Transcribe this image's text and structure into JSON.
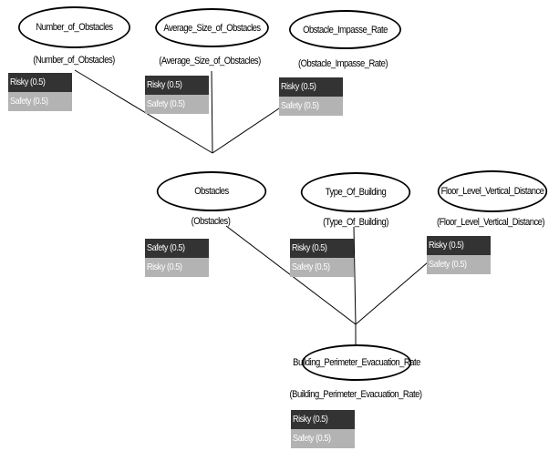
{
  "nodes": [
    {
      "id": "n1",
      "name": "Number_of_Obstacles",
      "sublabel": "(Number_of_Obstacles)",
      "states": [
        {
          "label": "Risky (0.5)",
          "tone": "dark"
        },
        {
          "label": "Safety (0.5)",
          "tone": "light"
        }
      ]
    },
    {
      "id": "n2",
      "name": "Average_Size_of_Obstacles",
      "sublabel": "(Average_Size_of_Obstacles)",
      "states": [
        {
          "label": "Risky (0.5)",
          "tone": "dark"
        },
        {
          "label": "Safety (0.5)",
          "tone": "light"
        }
      ]
    },
    {
      "id": "n3",
      "name": "Obstacle_Impasse_Rate",
      "sublabel": "(Obstacle_Impasse_Rate)",
      "states": [
        {
          "label": "Risky (0.5)",
          "tone": "dark"
        },
        {
          "label": "Safety (0.5)",
          "tone": "light"
        }
      ]
    },
    {
      "id": "n4",
      "name": "Obstacles",
      "sublabel": "(Obstacles)",
      "states": [
        {
          "label": "Safety (0.5)",
          "tone": "dark"
        },
        {
          "label": "Risky (0.5)",
          "tone": "light"
        }
      ]
    },
    {
      "id": "n5",
      "name": "Type_Of_Building",
      "sublabel": "(Type_Of_Building)",
      "states": [
        {
          "label": "Risky (0.5)",
          "tone": "dark"
        },
        {
          "label": "Safety (0.5)",
          "tone": "light"
        }
      ]
    },
    {
      "id": "n6",
      "name": "Floor_Level_Vertical_Distance",
      "sublabel": "(Floor_Level_Vertical_Distance)",
      "states": [
        {
          "label": "Risky (0.5)",
          "tone": "dark"
        },
        {
          "label": "Safety (0.5)",
          "tone": "light"
        }
      ]
    },
    {
      "id": "n7",
      "name": "Building_Perimeter_Evacuation_Rate",
      "sublabel": "(Building_Perimeter_Evacuation_Rate)",
      "states": [
        {
          "label": "Risky (0.5)",
          "tone": "dark"
        },
        {
          "label": "Safety (0.5)",
          "tone": "light"
        }
      ]
    }
  ],
  "edges": [
    {
      "from": "n1",
      "to": "n4"
    },
    {
      "from": "n2",
      "to": "n4"
    },
    {
      "from": "n3",
      "to": "n4"
    },
    {
      "from": "n4",
      "to": "n7"
    },
    {
      "from": "n5",
      "to": "n7"
    },
    {
      "from": "n6",
      "to": "n7"
    }
  ],
  "colors": {
    "state_dark": "#333333",
    "state_light": "#b3b3b3",
    "edge": "#000000"
  }
}
